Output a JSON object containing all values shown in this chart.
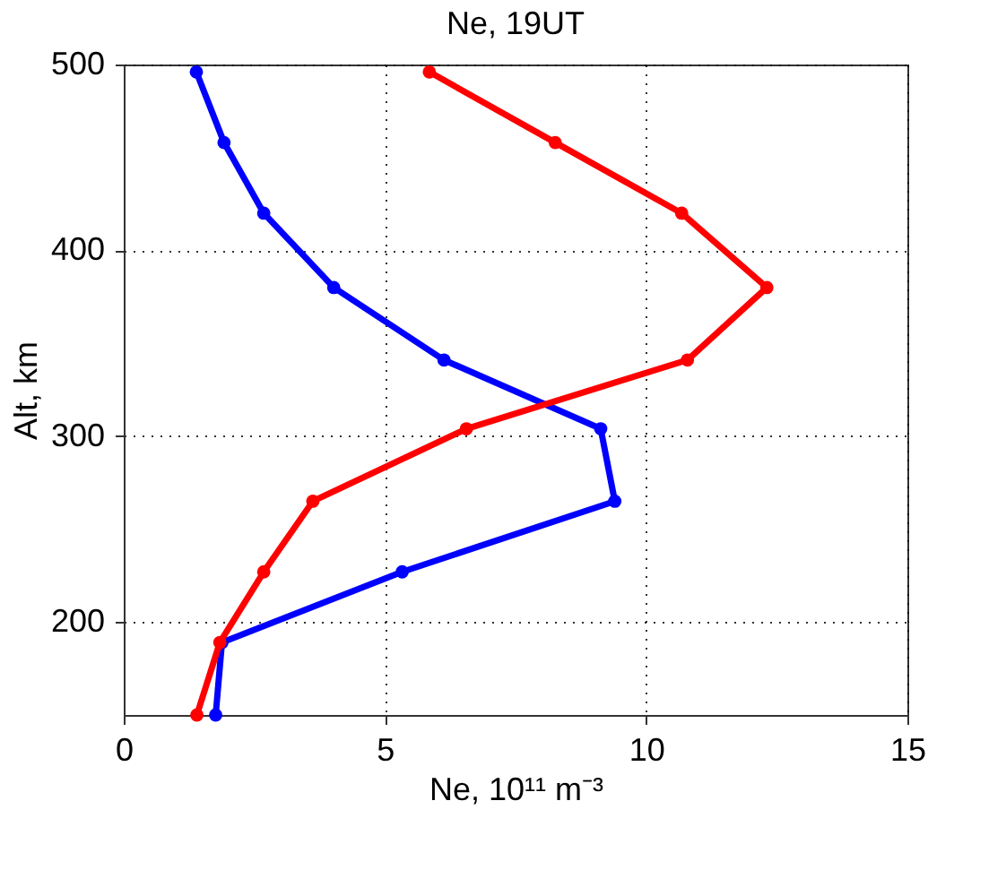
{
  "chart_data": {
    "type": "line",
    "title": "Ne, 19UT",
    "xlabel": "Ne, 10¹¹ m⁻³",
    "ylabel": "Alt, km",
    "xlim": [
      0,
      15
    ],
    "xticks": [
      0,
      5,
      10,
      15
    ],
    "ylim": [
      150,
      500
    ],
    "yticks": [
      200,
      300,
      400,
      500
    ],
    "grid": true,
    "marker": "circle",
    "line_style": "solid",
    "series": [
      {
        "color": "#0000ff",
        "x": [
          1.39,
          1.92,
          2.68,
          4.02,
          6.13,
          9.13,
          9.4,
          5.33,
          1.88,
          1.76
        ],
        "values": [
          496,
          458,
          420,
          380,
          341,
          304,
          265,
          227,
          189,
          150
        ]
      },
      {
        "color": "#ff0000",
        "x": [
          5.85,
          8.26,
          10.68,
          12.31,
          10.79,
          6.56,
          3.62,
          2.68,
          1.84,
          1.4
        ],
        "values": [
          496,
          458,
          420,
          380,
          341,
          304,
          265,
          227,
          189,
          150
        ]
      }
    ]
  }
}
